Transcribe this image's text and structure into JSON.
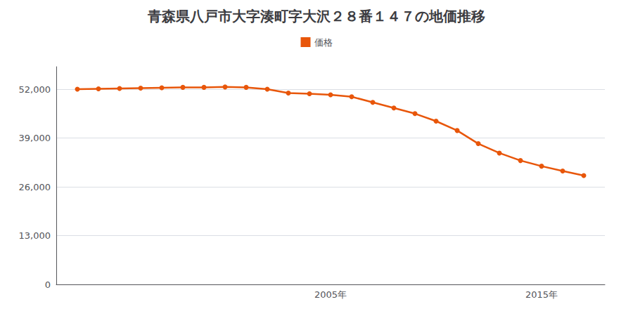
{
  "chart_data": {
    "type": "line",
    "title": "青森県八戸市大字湊町字大沢２８番１４７の地価推移",
    "x": [
      1993,
      1994,
      1995,
      1996,
      1997,
      1998,
      1999,
      2000,
      2001,
      2002,
      2003,
      2004,
      2005,
      2006,
      2007,
      2008,
      2009,
      2010,
      2011,
      2012,
      2013,
      2014,
      2015,
      2016,
      2017
    ],
    "series": [
      {
        "name": "価格",
        "color": "#e8560a",
        "marker": "circle",
        "values": [
          52000,
          52100,
          52200,
          52300,
          52400,
          52500,
          52500,
          52600,
          52500,
          52000,
          51000,
          50800,
          50500,
          50000,
          48500,
          47000,
          45500,
          43500,
          41000,
          37500,
          35000,
          33000,
          31500,
          30200,
          29000
        ]
      }
    ],
    "xlim": [
      1992,
      2018
    ],
    "xticks": [
      {
        "value": 2005,
        "label": "2005年"
      },
      {
        "value": 2015,
        "label": "2015年"
      }
    ],
    "ylim": [
      0,
      58000
    ],
    "yticks": [
      0,
      {
        "value": 13000,
        "label": "13,000"
      },
      {
        "value": 26000,
        "label": "26,000"
      },
      {
        "value": 39000,
        "label": "39,000"
      },
      {
        "value": 52000,
        "label": "52,000"
      }
    ],
    "grid": true,
    "legend": "top"
  }
}
